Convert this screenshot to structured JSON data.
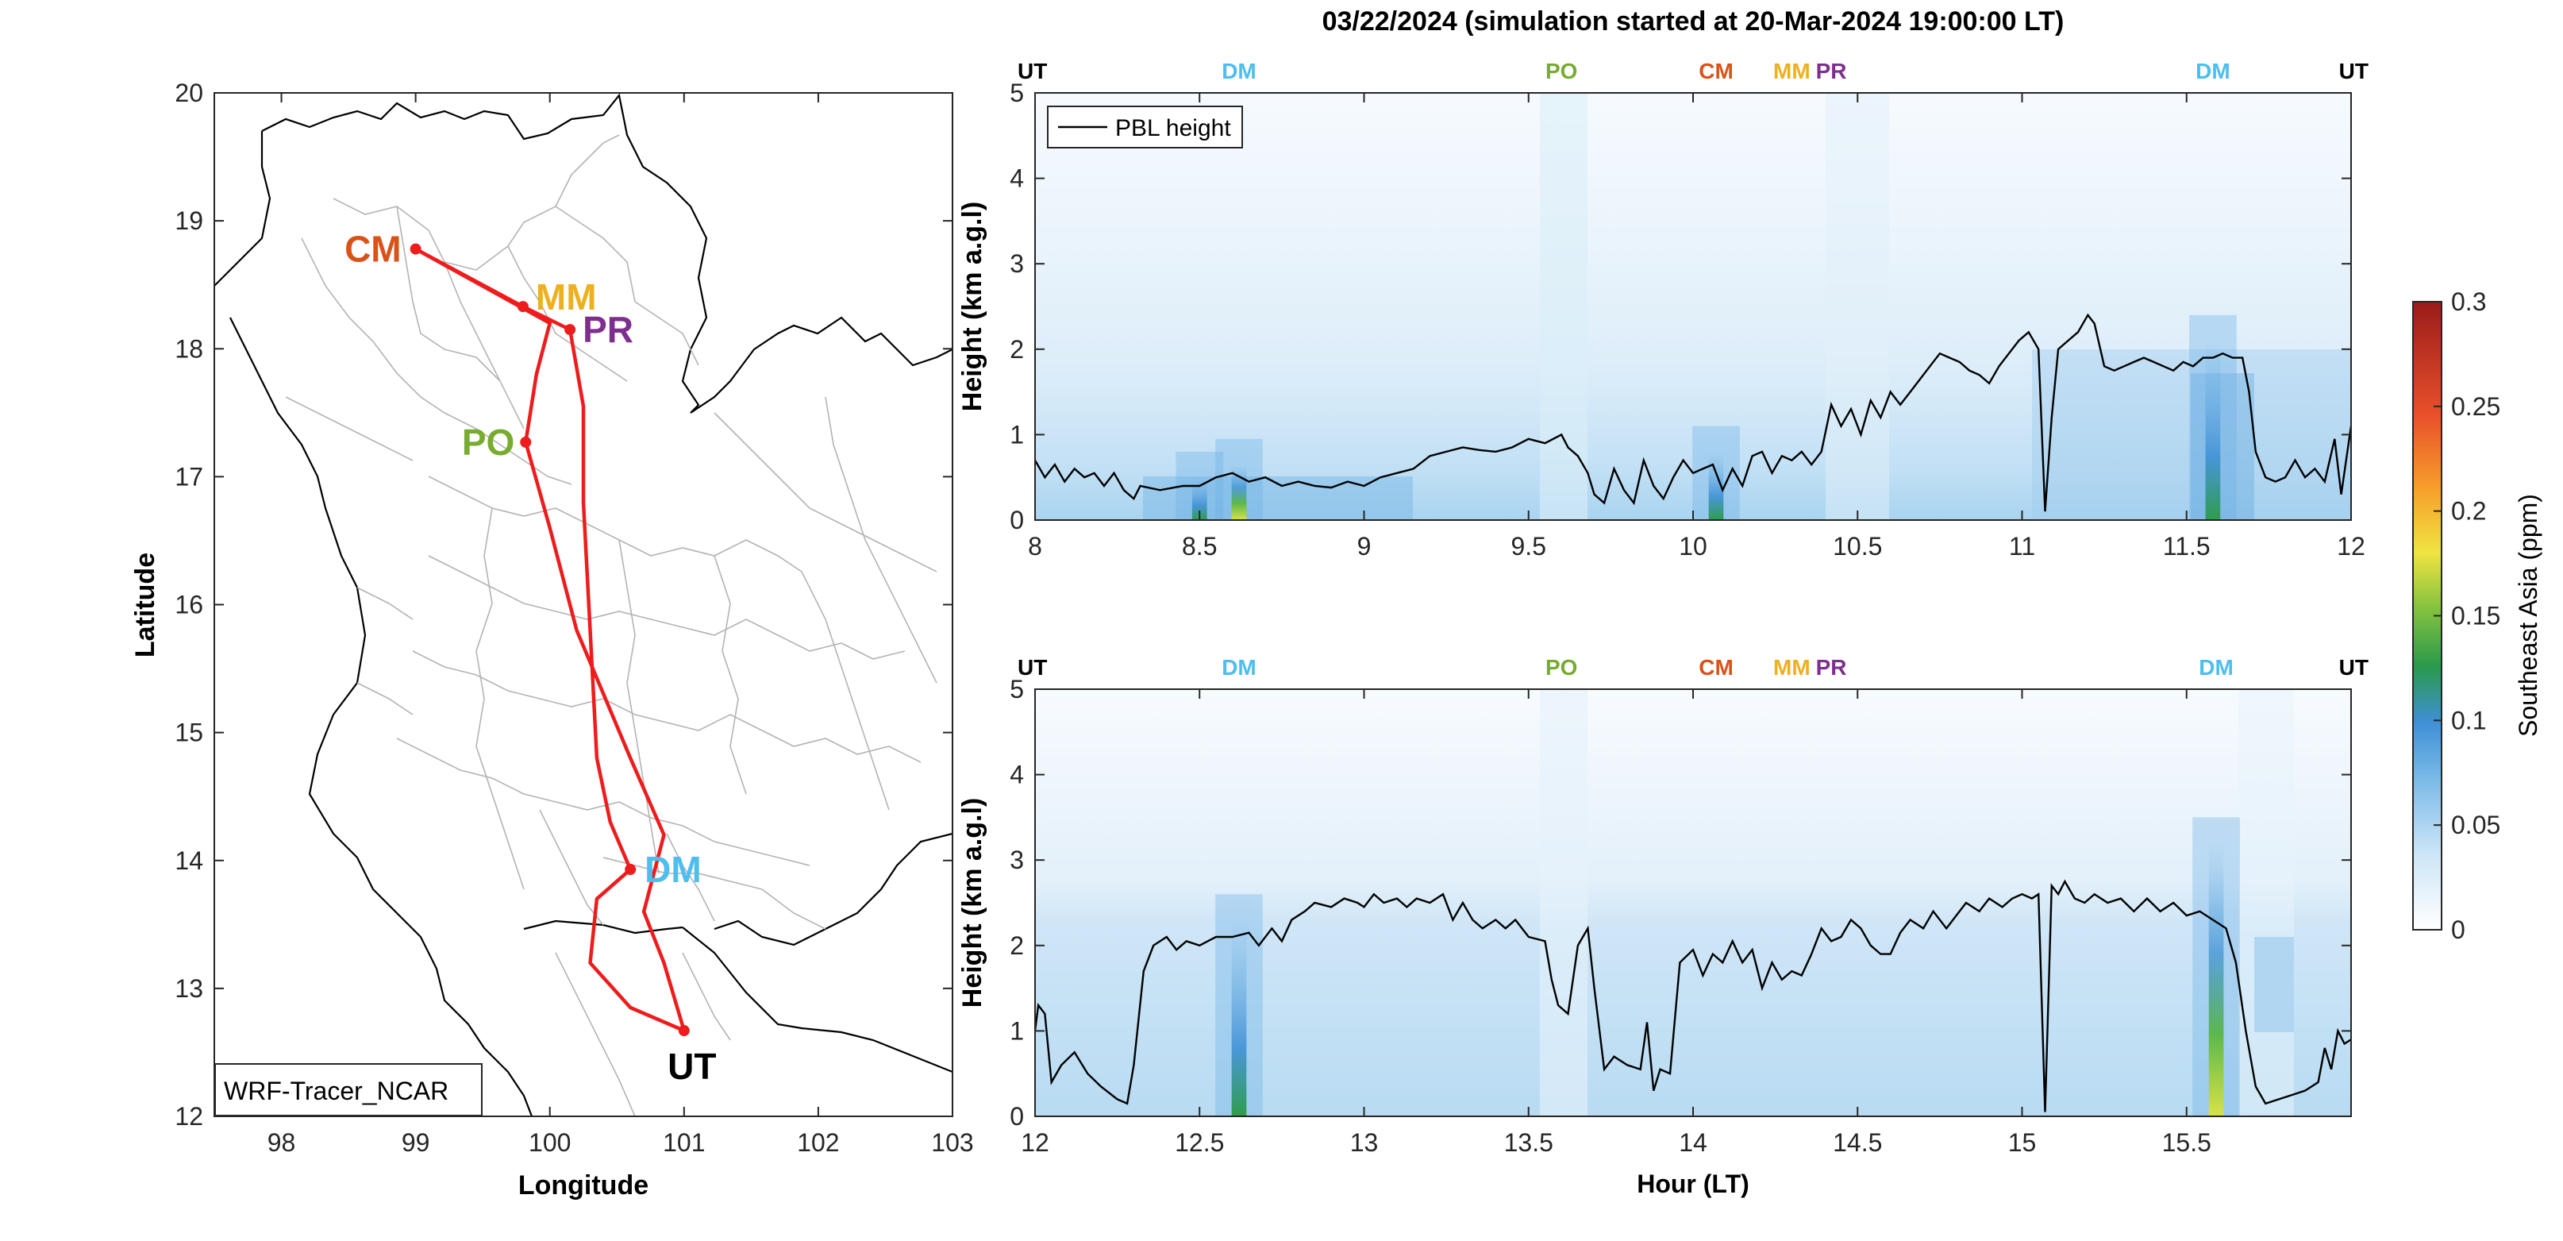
{
  "title": "03/22/2024 (simulation started at 20-Mar-2024 19:00:00 LT)",
  "colors": {
    "route": "#ee1c1c",
    "CM": "#d95319",
    "MM": "#edb120",
    "PR": "#7e2f8e",
    "PO": "#77ac30",
    "DM": "#4dbeee",
    "UT": "#000000",
    "pbl": "#000000",
    "boundary": "#b3b3b3",
    "coast": "#000000"
  },
  "chart_data": [
    {
      "type": "line",
      "name": "map",
      "xlabel": "Longitude",
      "ylabel": "Latitude",
      "xlim": [
        97.5,
        103
      ],
      "ylim": [
        12,
        20
      ],
      "xticks": [
        "98",
        "99",
        "100",
        "101",
        "102",
        "103"
      ],
      "yticks": [
        "12",
        "13",
        "14",
        "15",
        "16",
        "17",
        "18",
        "19",
        "20"
      ],
      "legend": "WRF-Tracer_NCAR",
      "stations": [
        {
          "label": "CM",
          "lon": 99.0,
          "lat": 18.78
        },
        {
          "label": "MM",
          "lon": 99.8,
          "lat": 18.33
        },
        {
          "label": "PR",
          "lon": 100.15,
          "lat": 18.15
        },
        {
          "label": "PO",
          "lon": 99.82,
          "lat": 17.27
        },
        {
          "label": "DM",
          "lon": 100.6,
          "lat": 13.93
        },
        {
          "label": "UT",
          "lon": 101.0,
          "lat": 12.67
        }
      ],
      "route": [
        [
          99.0,
          18.78
        ],
        [
          99.8,
          18.33
        ],
        [
          100.15,
          18.15
        ],
        [
          100.25,
          17.55
        ],
        [
          100.25,
          16.8
        ],
        [
          100.3,
          15.8
        ],
        [
          100.35,
          14.8
        ],
        [
          100.45,
          14.3
        ],
        [
          100.6,
          13.93
        ],
        [
          100.35,
          13.7
        ],
        [
          100.3,
          13.2
        ],
        [
          100.6,
          12.85
        ],
        [
          101.0,
          12.67
        ],
        [
          100.85,
          13.2
        ],
        [
          100.7,
          13.6
        ],
        [
          100.85,
          14.2
        ],
        [
          100.6,
          14.8
        ],
        [
          100.2,
          15.8
        ],
        [
          100.0,
          16.6
        ],
        [
          99.82,
          17.27
        ],
        [
          99.9,
          17.8
        ],
        [
          100.0,
          18.2
        ],
        [
          99.0,
          18.78
        ]
      ]
    },
    {
      "type": "heatmap",
      "name": "panel-top",
      "ylabel": "Height (km a.g.l)",
      "xlim": [
        8,
        12
      ],
      "ylim": [
        0,
        5
      ],
      "xticks": [
        "8",
        "8.5",
        "9",
        "9.5",
        "10",
        "10.5",
        "11",
        "11.5",
        "12"
      ],
      "yticks": [
        "0",
        "1",
        "2",
        "3",
        "4",
        "5"
      ],
      "legend": "PBL height",
      "station_markers": [
        {
          "label": "UT",
          "x": 8.0
        },
        {
          "label": "DM",
          "x": 8.62
        },
        {
          "label": "PO",
          "x": 9.6
        },
        {
          "label": "CM",
          "x": 10.07
        },
        {
          "label": "MM",
          "x": 10.3
        },
        {
          "label": "PR",
          "x": 10.42
        },
        {
          "label": "DM",
          "x": 11.58
        },
        {
          "label": "UT",
          "x": 12.0
        }
      ],
      "hotspots": [
        {
          "x": 8.62,
          "height": 0.35,
          "value": 0.15
        },
        {
          "x": 8.5,
          "height": 0.2,
          "value": 0.11
        },
        {
          "x": 10.07,
          "height": 0.5,
          "value": 0.13
        },
        {
          "x": 11.58,
          "height": 1.8,
          "value": 0.13
        }
      ],
      "pbl": [
        [
          8.0,
          0.7
        ],
        [
          8.03,
          0.5
        ],
        [
          8.06,
          0.65
        ],
        [
          8.09,
          0.45
        ],
        [
          8.12,
          0.6
        ],
        [
          8.15,
          0.5
        ],
        [
          8.18,
          0.55
        ],
        [
          8.21,
          0.4
        ],
        [
          8.24,
          0.55
        ],
        [
          8.27,
          0.35
        ],
        [
          8.3,
          0.25
        ],
        [
          8.32,
          0.4
        ],
        [
          8.38,
          0.35
        ],
        [
          8.45,
          0.4
        ],
        [
          8.5,
          0.4
        ],
        [
          8.55,
          0.5
        ],
        [
          8.6,
          0.55
        ],
        [
          8.65,
          0.45
        ],
        [
          8.7,
          0.5
        ],
        [
          8.75,
          0.4
        ],
        [
          8.8,
          0.45
        ],
        [
          8.85,
          0.4
        ],
        [
          8.9,
          0.38
        ],
        [
          8.95,
          0.45
        ],
        [
          9.0,
          0.4
        ],
        [
          9.05,
          0.5
        ],
        [
          9.1,
          0.55
        ],
        [
          9.15,
          0.6
        ],
        [
          9.2,
          0.75
        ],
        [
          9.25,
          0.8
        ],
        [
          9.3,
          0.85
        ],
        [
          9.35,
          0.82
        ],
        [
          9.4,
          0.8
        ],
        [
          9.45,
          0.85
        ],
        [
          9.5,
          0.95
        ],
        [
          9.55,
          0.9
        ],
        [
          9.6,
          1.0
        ],
        [
          9.62,
          0.85
        ],
        [
          9.65,
          0.75
        ],
        [
          9.68,
          0.55
        ],
        [
          9.7,
          0.3
        ],
        [
          9.73,
          0.2
        ],
        [
          9.76,
          0.6
        ],
        [
          9.79,
          0.35
        ],
        [
          9.82,
          0.2
        ],
        [
          9.85,
          0.7
        ],
        [
          9.88,
          0.4
        ],
        [
          9.91,
          0.25
        ],
        [
          9.94,
          0.5
        ],
        [
          9.97,
          0.7
        ],
        [
          10.0,
          0.55
        ],
        [
          10.03,
          0.6
        ],
        [
          10.06,
          0.65
        ],
        [
          10.09,
          0.35
        ],
        [
          10.12,
          0.6
        ],
        [
          10.15,
          0.4
        ],
        [
          10.18,
          0.75
        ],
        [
          10.21,
          0.8
        ],
        [
          10.24,
          0.55
        ],
        [
          10.27,
          0.75
        ],
        [
          10.3,
          0.7
        ],
        [
          10.33,
          0.8
        ],
        [
          10.36,
          0.65
        ],
        [
          10.39,
          0.8
        ],
        [
          10.42,
          1.35
        ],
        [
          10.45,
          1.1
        ],
        [
          10.48,
          1.3
        ],
        [
          10.51,
          1.0
        ],
        [
          10.54,
          1.4
        ],
        [
          10.57,
          1.2
        ],
        [
          10.6,
          1.5
        ],
        [
          10.63,
          1.35
        ],
        [
          10.66,
          1.5
        ],
        [
          10.69,
          1.65
        ],
        [
          10.72,
          1.8
        ],
        [
          10.75,
          1.95
        ],
        [
          10.78,
          1.9
        ],
        [
          10.81,
          1.85
        ],
        [
          10.84,
          1.75
        ],
        [
          10.87,
          1.7
        ],
        [
          10.9,
          1.6
        ],
        [
          10.93,
          1.8
        ],
        [
          10.96,
          1.95
        ],
        [
          10.99,
          2.1
        ],
        [
          11.02,
          2.2
        ],
        [
          11.05,
          2.0
        ],
        [
          11.07,
          0.1
        ],
        [
          11.09,
          1.2
        ],
        [
          11.11,
          2.0
        ],
        [
          11.14,
          2.1
        ],
        [
          11.17,
          2.2
        ],
        [
          11.2,
          2.4
        ],
        [
          11.22,
          2.3
        ],
        [
          11.25,
          1.8
        ],
        [
          11.28,
          1.75
        ],
        [
          11.31,
          1.8
        ],
        [
          11.34,
          1.85
        ],
        [
          11.37,
          1.9
        ],
        [
          11.4,
          1.85
        ],
        [
          11.43,
          1.8
        ],
        [
          11.46,
          1.75
        ],
        [
          11.49,
          1.85
        ],
        [
          11.52,
          1.8
        ],
        [
          11.55,
          1.9
        ],
        [
          11.58,
          1.9
        ],
        [
          11.61,
          1.95
        ],
        [
          11.64,
          1.9
        ],
        [
          11.67,
          1.9
        ],
        [
          11.69,
          1.5
        ],
        [
          11.71,
          0.8
        ],
        [
          11.74,
          0.5
        ],
        [
          11.77,
          0.45
        ],
        [
          11.8,
          0.5
        ],
        [
          11.83,
          0.7
        ],
        [
          11.86,
          0.5
        ],
        [
          11.89,
          0.6
        ],
        [
          11.92,
          0.45
        ],
        [
          11.95,
          0.95
        ],
        [
          11.97,
          0.3
        ],
        [
          12.0,
          1.1
        ]
      ]
    },
    {
      "type": "heatmap",
      "name": "panel-bottom",
      "xlabel": "Hour (LT)",
      "ylabel": "Height (km a.g.l)",
      "xlim": [
        12,
        16
      ],
      "ylim": [
        0,
        5
      ],
      "xticks": [
        "12",
        "12.5",
        "13",
        "13.5",
        "14",
        "14.5",
        "15",
        "15.5"
      ],
      "yticks": [
        "0",
        "1",
        "2",
        "3",
        "4",
        "5"
      ],
      "station_markers": [
        {
          "label": "UT",
          "x": 12.0
        },
        {
          "label": "DM",
          "x": 12.62
        },
        {
          "label": "PO",
          "x": 13.6
        },
        {
          "label": "CM",
          "x": 14.07
        },
        {
          "label": "MM",
          "x": 14.3
        },
        {
          "label": "PR",
          "x": 14.42
        },
        {
          "label": "DM",
          "x": 15.59
        },
        {
          "label": "UT",
          "x": 16.0
        }
      ],
      "hotspots": [
        {
          "x": 12.62,
          "height": 2.0,
          "value": 0.14
        },
        {
          "x": 15.59,
          "height": 2.9,
          "value": 0.15
        }
      ],
      "pbl": [
        [
          12.0,
          1.0
        ],
        [
          12.01,
          1.3
        ],
        [
          12.03,
          1.2
        ],
        [
          12.05,
          0.4
        ],
        [
          12.08,
          0.6
        ],
        [
          12.12,
          0.75
        ],
        [
          12.16,
          0.5
        ],
        [
          12.2,
          0.35
        ],
        [
          12.25,
          0.2
        ],
        [
          12.28,
          0.15
        ],
        [
          12.3,
          0.6
        ],
        [
          12.33,
          1.7
        ],
        [
          12.36,
          2.0
        ],
        [
          12.4,
          2.1
        ],
        [
          12.43,
          1.95
        ],
        [
          12.46,
          2.05
        ],
        [
          12.5,
          2.0
        ],
        [
          12.55,
          2.1
        ],
        [
          12.6,
          2.1
        ],
        [
          12.65,
          2.15
        ],
        [
          12.68,
          2.0
        ],
        [
          12.72,
          2.2
        ],
        [
          12.75,
          2.05
        ],
        [
          12.78,
          2.3
        ],
        [
          12.82,
          2.4
        ],
        [
          12.85,
          2.5
        ],
        [
          12.9,
          2.45
        ],
        [
          12.94,
          2.55
        ],
        [
          12.98,
          2.5
        ],
        [
          13.0,
          2.45
        ],
        [
          13.03,
          2.6
        ],
        [
          13.06,
          2.5
        ],
        [
          13.1,
          2.55
        ],
        [
          13.13,
          2.45
        ],
        [
          13.16,
          2.55
        ],
        [
          13.2,
          2.5
        ],
        [
          13.24,
          2.6
        ],
        [
          13.27,
          2.3
        ],
        [
          13.3,
          2.5
        ],
        [
          13.33,
          2.3
        ],
        [
          13.36,
          2.2
        ],
        [
          13.4,
          2.3
        ],
        [
          13.43,
          2.2
        ],
        [
          13.46,
          2.3
        ],
        [
          13.5,
          2.1
        ],
        [
          13.55,
          2.05
        ],
        [
          13.57,
          1.6
        ],
        [
          13.59,
          1.3
        ],
        [
          13.62,
          1.2
        ],
        [
          13.65,
          2.0
        ],
        [
          13.68,
          2.2
        ],
        [
          13.7,
          1.5
        ],
        [
          13.73,
          0.55
        ],
        [
          13.76,
          0.7
        ],
        [
          13.8,
          0.6
        ],
        [
          13.84,
          0.55
        ],
        [
          13.86,
          1.1
        ],
        [
          13.88,
          0.3
        ],
        [
          13.9,
          0.55
        ],
        [
          13.93,
          0.5
        ],
        [
          13.96,
          1.8
        ],
        [
          14.0,
          1.95
        ],
        [
          14.03,
          1.65
        ],
        [
          14.06,
          1.9
        ],
        [
          14.09,
          1.8
        ],
        [
          14.12,
          2.05
        ],
        [
          14.15,
          1.8
        ],
        [
          14.18,
          1.95
        ],
        [
          14.21,
          1.5
        ],
        [
          14.24,
          1.8
        ],
        [
          14.27,
          1.6
        ],
        [
          14.3,
          1.7
        ],
        [
          14.33,
          1.65
        ],
        [
          14.36,
          1.9
        ],
        [
          14.39,
          2.2
        ],
        [
          14.42,
          2.05
        ],
        [
          14.45,
          2.1
        ],
        [
          14.48,
          2.3
        ],
        [
          14.51,
          2.2
        ],
        [
          14.54,
          2.0
        ],
        [
          14.57,
          1.9
        ],
        [
          14.6,
          1.9
        ],
        [
          14.63,
          2.15
        ],
        [
          14.66,
          2.3
        ],
        [
          14.7,
          2.2
        ],
        [
          14.73,
          2.4
        ],
        [
          14.77,
          2.2
        ],
        [
          14.8,
          2.35
        ],
        [
          14.83,
          2.5
        ],
        [
          14.87,
          2.4
        ],
        [
          14.9,
          2.55
        ],
        [
          14.94,
          2.45
        ],
        [
          14.97,
          2.55
        ],
        [
          15.0,
          2.6
        ],
        [
          15.03,
          2.55
        ],
        [
          15.05,
          2.6
        ],
        [
          15.07,
          0.05
        ],
        [
          15.09,
          2.7
        ],
        [
          15.11,
          2.6
        ],
        [
          15.13,
          2.75
        ],
        [
          15.16,
          2.55
        ],
        [
          15.19,
          2.5
        ],
        [
          15.22,
          2.6
        ],
        [
          15.26,
          2.5
        ],
        [
          15.3,
          2.55
        ],
        [
          15.34,
          2.4
        ],
        [
          15.38,
          2.55
        ],
        [
          15.42,
          2.4
        ],
        [
          15.46,
          2.5
        ],
        [
          15.5,
          2.35
        ],
        [
          15.54,
          2.4
        ],
        [
          15.58,
          2.3
        ],
        [
          15.62,
          2.2
        ],
        [
          15.65,
          1.8
        ],
        [
          15.68,
          1.0
        ],
        [
          15.71,
          0.35
        ],
        [
          15.74,
          0.15
        ],
        [
          15.78,
          0.2
        ],
        [
          15.82,
          0.25
        ],
        [
          15.86,
          0.3
        ],
        [
          15.9,
          0.4
        ],
        [
          15.92,
          0.8
        ],
        [
          15.94,
          0.55
        ],
        [
          15.96,
          1.0
        ],
        [
          15.98,
          0.85
        ],
        [
          16.0,
          0.9
        ]
      ]
    }
  ],
  "colorbar": {
    "label": "Southeast Asia (ppm)",
    "ticks": [
      "0",
      "0.05",
      "0.1",
      "0.15",
      "0.2",
      "0.25",
      "0.3"
    ],
    "min": 0,
    "max": 0.3
  }
}
